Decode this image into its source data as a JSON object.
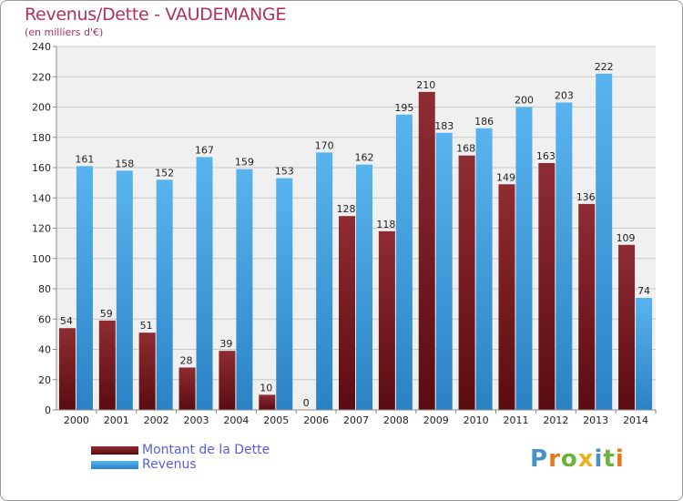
{
  "chart_data": {
    "type": "bar",
    "title": "Revenus/Dette - VAUDEMANGE",
    "subtitle": "(en milliers d'€)",
    "xlabel": "",
    "ylabel": "",
    "ylim": [
      0,
      240
    ],
    "yticks": [
      "0",
      "20",
      "40",
      "60",
      "80",
      "100",
      "120",
      "140",
      "160",
      "180",
      "200",
      "220",
      "240"
    ],
    "grid": true,
    "legend_position": "bottom-left",
    "categories": [
      "2000",
      "2001",
      "2002",
      "2003",
      "2004",
      "2005",
      "2006",
      "2007",
      "2008",
      "2009",
      "2010",
      "2011",
      "2012",
      "2013",
      "2014"
    ],
    "series": [
      {
        "name": "Montant de la Dette",
        "color": "#7a1f24",
        "values": [
          54,
          59,
          51,
          28,
          39,
          10,
          0,
          128,
          118,
          210,
          168,
          149,
          163,
          136,
          109
        ]
      },
      {
        "name": "Revenus",
        "color": "#3c9ee0",
        "values": [
          161,
          158,
          152,
          167,
          159,
          153,
          170,
          162,
          195,
          183,
          186,
          200,
          203,
          222,
          74
        ]
      }
    ]
  },
  "logo": {
    "text": "Proxiti",
    "letters": [
      {
        "ch": "P",
        "color": "#4a90c8"
      },
      {
        "ch": "r",
        "color": "#e07a1f"
      },
      {
        "ch": "o",
        "color": "#6ab23c"
      },
      {
        "ch": "x",
        "color": "#e8b21c"
      },
      {
        "ch": "i",
        "color": "#4a90c8"
      },
      {
        "ch": "t",
        "color": "#6ab23c"
      },
      {
        "ch": "i",
        "color": "#e07a1f"
      }
    ]
  }
}
